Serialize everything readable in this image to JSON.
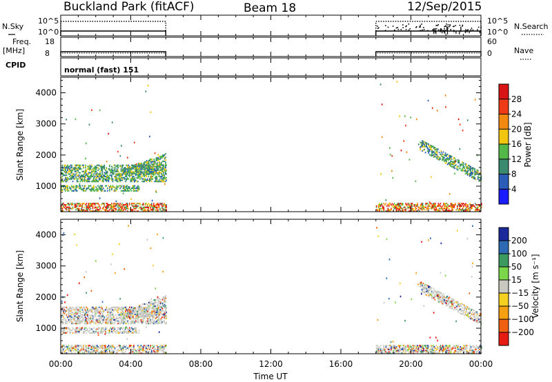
{
  "header": {
    "station": "Buckland Park (fitACF)",
    "beam": "Beam 18",
    "date": "12/Sep/2015"
  },
  "panels": {
    "nsky_label": "N.Sky",
    "nsky_ticks": [
      "10^5",
      "10^0"
    ],
    "nsearch_label": "N.Search",
    "nsearch_ticks": [
      "10^5",
      "10^0"
    ],
    "freq_label": "Freq.",
    "freq_unit": "[MHz]",
    "freq_ticks": [
      "18",
      "8"
    ],
    "nave_label": "Nave",
    "nave_ticks": [
      "60",
      "0"
    ],
    "cpid_label": "CPID",
    "cpid_text": "normal (fast) 151"
  },
  "chart_data": {
    "type": "heatmap",
    "xlabel": "Time UT",
    "x_ticks": [
      "00:00",
      "04:00",
      "08:00",
      "12:00",
      "16:00",
      "20:00",
      "00:00"
    ],
    "x_range_hours": [
      0,
      24
    ],
    "data_intervals_hours": [
      [
        0,
        6
      ],
      [
        18,
        24
      ]
    ],
    "range_ylabel": "Slant Range [km]",
    "range_ticks": [
      1000,
      2000,
      3000,
      4000
    ],
    "range_ylim_km": [
      180,
      4500
    ],
    "power": {
      "colorbar_label": "Power [dB]",
      "colorbar_ticks": [
        "4",
        "8",
        "12",
        "16",
        "20",
        "24",
        "28"
      ],
      "range": [
        0,
        32
      ],
      "colors": [
        "#1b1bff",
        "#2a5cb8",
        "#3a8a70",
        "#54b848",
        "#f2c60e",
        "#f28a12",
        "#ee3a16",
        "#d81414"
      ]
    },
    "velocity": {
      "colorbar_label": "Velocity [m s⁻¹]",
      "colorbar_ticks": [
        "200",
        "100",
        "50",
        "15",
        "−15",
        "−50",
        "−100",
        "−200"
      ],
      "colors": [
        "#1a2a9a",
        "#2e6ab4",
        "#3a9a60",
        "#7cd64a",
        "#c8c8c0",
        "#f5d020",
        "#f5a010",
        "#f06010",
        "#e81a14"
      ]
    },
    "echo_regions": [
      {
        "band": "low-range ground scatter",
        "hours": [
          0,
          6
        ],
        "range_km": [
          200,
          450
        ]
      },
      {
        "band": "low-range ground scatter",
        "hours": [
          18,
          24
        ],
        "range_km": [
          200,
          450
        ]
      },
      {
        "band": "lower ionospheric",
        "hours": [
          0,
          4.5
        ],
        "range_km": [
          850,
          1050
        ]
      },
      {
        "band": "main ionospheric",
        "hours": [
          0,
          6
        ],
        "range_km": [
          1150,
          1700
        ]
      },
      {
        "band": "main ionospheric",
        "hours": [
          3.5,
          6
        ],
        "range_km": [
          1400,
          2100
        ]
      },
      {
        "band": "descending ionospheric",
        "hours": [
          20.5,
          24
        ],
        "range_km": [
          1000,
          2500
        ]
      }
    ]
  }
}
